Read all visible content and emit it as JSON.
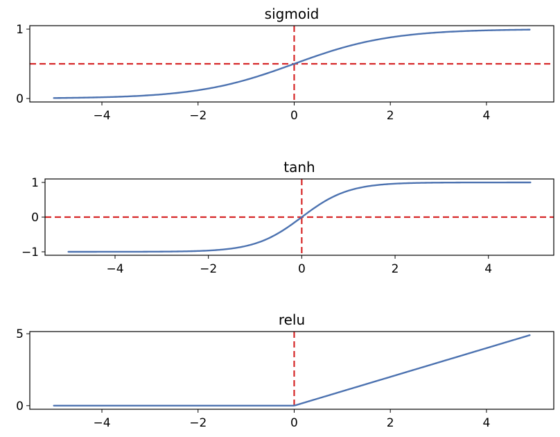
{
  "chart_data": [
    {
      "type": "line",
      "title": "sigmoid",
      "function": "sigmoid",
      "x_range": [
        -5,
        4.9
      ],
      "xlim": [
        -5.5,
        5.4
      ],
      "ylim": [
        -0.05,
        1.05
      ],
      "xticks": [
        -4,
        -2,
        0,
        2,
        4
      ],
      "xtick_labels": [
        "−4",
        "−2",
        "0",
        "2",
        "4"
      ],
      "yticks": [
        0,
        1
      ],
      "ytick_labels": [
        "0",
        "1"
      ],
      "reference_lines": {
        "x": 0,
        "y": 0.5
      },
      "series": [
        {
          "x": [
            -5,
            -4,
            -3,
            -2,
            -1,
            0,
            1,
            2,
            3,
            4,
            4.9
          ],
          "y": [
            0.007,
            0.018,
            0.047,
            0.119,
            0.269,
            0.5,
            0.731,
            0.881,
            0.953,
            0.982,
            0.993
          ]
        }
      ]
    },
    {
      "type": "line",
      "title": "tanh",
      "function": "tanh",
      "x_range": [
        -5,
        4.9
      ],
      "xlim": [
        -5.5,
        5.4
      ],
      "ylim": [
        -1.1,
        1.1
      ],
      "xticks": [
        -4,
        -2,
        0,
        2,
        4
      ],
      "xtick_labels": [
        "−4",
        "−2",
        "0",
        "2",
        "4"
      ],
      "yticks": [
        -1,
        0,
        1
      ],
      "ytick_labels": [
        "−1",
        "0",
        "1"
      ],
      "reference_lines": {
        "x": 0,
        "y": 0
      },
      "series": [
        {
          "x": [
            -5,
            -4,
            -3,
            -2,
            -1,
            0,
            1,
            2,
            3,
            4,
            4.9
          ],
          "y": [
            -1.0,
            -0.999,
            -0.995,
            -0.964,
            -0.762,
            0.0,
            0.762,
            0.964,
            0.995,
            0.999,
            1.0
          ]
        }
      ]
    },
    {
      "type": "line",
      "title": "relu",
      "function": "relu",
      "x_range": [
        -5,
        4.9
      ],
      "xlim": [
        -5.5,
        5.4
      ],
      "ylim": [
        -0.25,
        5.15
      ],
      "xticks": [
        -4,
        -2,
        0,
        2,
        4
      ],
      "xtick_labels": [
        "−4",
        "−2",
        "0",
        "2",
        "4"
      ],
      "yticks": [
        0,
        5
      ],
      "ytick_labels": [
        "0",
        "5"
      ],
      "reference_lines": {
        "x": 0
      },
      "series": [
        {
          "x": [
            -5,
            0,
            4.9
          ],
          "y": [
            0,
            0,
            4.9
          ]
        }
      ]
    }
  ],
  "colors": {
    "curve": "#4c72b0",
    "reference": "#d62728",
    "axes": "#000000"
  }
}
